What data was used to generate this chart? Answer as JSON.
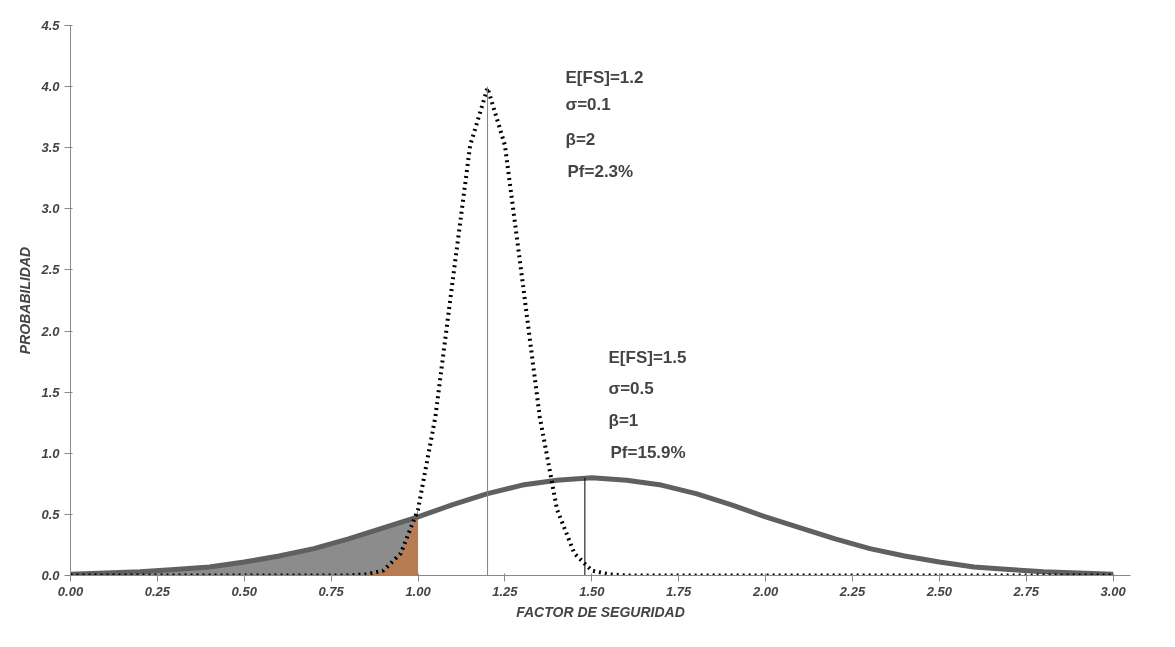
{
  "chart_data": {
    "type": "line",
    "xlabel": "FACTOR DE SEGURIDAD",
    "ylabel": "PROBABILIDAD",
    "xlim": [
      0,
      3.05
    ],
    "ylim": [
      0,
      4.5
    ],
    "xticks": [
      {
        "value": 0,
        "label": "0.00"
      },
      {
        "value": 0.25,
        "label": "0.25"
      },
      {
        "value": 0.5,
        "label": "0.50"
      },
      {
        "value": 0.75,
        "label": "0.75"
      },
      {
        "value": 1,
        "label": "1.00"
      },
      {
        "value": 1.25,
        "label": "1.25"
      },
      {
        "value": 1.5,
        "label": "1.50"
      },
      {
        "value": 1.75,
        "label": "1.75"
      },
      {
        "value": 2,
        "label": "2.00"
      },
      {
        "value": 2.25,
        "label": "2.25"
      },
      {
        "value": 2.5,
        "label": "2.50"
      },
      {
        "value": 2.75,
        "label": "2.75"
      },
      {
        "value": 3,
        "label": "3.00"
      }
    ],
    "yticks": [
      {
        "value": 0,
        "label": "0.0"
      },
      {
        "value": 0.5,
        "label": "0.5"
      },
      {
        "value": 1,
        "label": "1.0"
      },
      {
        "value": 1.5,
        "label": "1.5"
      },
      {
        "value": 2,
        "label": "2.0"
      },
      {
        "value": 2.5,
        "label": "2.5"
      },
      {
        "value": 3,
        "label": "3.0"
      },
      {
        "value": 3.5,
        "label": "3.5"
      },
      {
        "value": 4,
        "label": "4.0"
      },
      {
        "value": 4.5,
        "label": "4.5"
      }
    ],
    "grid": false,
    "series": [
      {
        "type": "area",
        "color": "#8c8c8c",
        "x": [
          0,
          0.1,
          0.2,
          0.3,
          0.4,
          0.5,
          0.6,
          0.7,
          0.8,
          0.9,
          1.0
        ],
        "values": [
          0.01,
          0.02,
          0.03,
          0.05,
          0.07,
          0.11,
          0.16,
          0.22,
          0.3,
          0.39,
          0.48
        ]
      },
      {
        "type": "area",
        "color": "#b87c52",
        "x": [
          0.85,
          0.9,
          0.95,
          1.0
        ],
        "values": [
          0.01,
          0.04,
          0.18,
          0.54
        ]
      },
      {
        "color": "#606060",
        "line_style": "solid",
        "x": [
          0,
          0.1,
          0.2,
          0.3,
          0.4,
          0.5,
          0.6,
          0.7,
          0.8,
          0.9,
          1.0,
          1.1,
          1.2,
          1.3,
          1.4,
          1.5,
          1.6,
          1.7,
          1.8,
          1.9,
          2.0,
          2.1,
          2.2,
          2.3,
          2.4,
          2.5,
          2.6,
          2.7,
          2.8,
          2.9,
          3.0
        ],
        "values": [
          0.01,
          0.02,
          0.03,
          0.05,
          0.07,
          0.11,
          0.16,
          0.22,
          0.3,
          0.39,
          0.48,
          0.58,
          0.67,
          0.74,
          0.78,
          0.8,
          0.78,
          0.74,
          0.67,
          0.58,
          0.48,
          0.39,
          0.3,
          0.22,
          0.16,
          0.11,
          0.07,
          0.05,
          0.03,
          0.02,
          0.01
        ]
      },
      {
        "color": "#000000",
        "line_style": "dotted",
        "x": [
          0,
          0.7,
          0.8,
          0.85,
          0.9,
          0.95,
          1.0,
          1.05,
          1.1,
          1.15,
          1.2,
          1.25,
          1.3,
          1.35,
          1.4,
          1.45,
          1.5,
          1.55,
          1.6,
          1.7,
          3.0
        ],
        "values": [
          0,
          0,
          0,
          0.01,
          0.04,
          0.18,
          0.54,
          1.3,
          2.42,
          3.52,
          3.99,
          3.52,
          2.42,
          1.3,
          0.54,
          0.18,
          0.04,
          0.01,
          0,
          0,
          0
        ]
      },
      {
        "color": "#808080",
        "line_style": "solid",
        "x": [
          1.2,
          1.2
        ],
        "values": [
          0,
          4.0
        ]
      },
      {
        "color": "#000000",
        "line_style": "solid",
        "x": [
          1.48,
          1.48
        ],
        "values": [
          0,
          0.8
        ]
      }
    ],
    "annotations": [
      "E[FS]=1.2",
      "σ=0.1",
      "β=2",
      "Pf=2.3%",
      "E[FS]=1.5",
      "σ=0.5",
      "β=1",
      "Pf=15.9%"
    ]
  }
}
